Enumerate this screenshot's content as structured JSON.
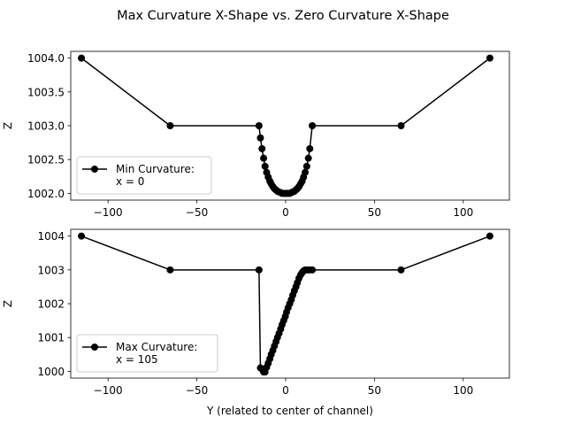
{
  "figure": {
    "title": "Max Curvature X-Shape vs. Zero Curvature X-Shape"
  },
  "chart_data": [
    {
      "type": "line",
      "panel": "top",
      "title": "",
      "xlabel": "",
      "ylabel": "Z",
      "xlim": [
        -121,
        126
      ],
      "ylim": [
        1001.9,
        1004.1
      ],
      "xticks": [
        -100,
        -50,
        0,
        50,
        100
      ],
      "xtick_labels": [
        "−100",
        "−50",
        "0",
        "50",
        "100"
      ],
      "yticks": [
        1002.0,
        1002.5,
        1003.0,
        1003.5,
        1004.0
      ],
      "ytick_labels": [
        "1002.0",
        "1002.5",
        "1003.0",
        "1003.5",
        "1004.0"
      ],
      "grid": false,
      "legend_position": "lower-left",
      "series": [
        {
          "name": "Min Curvature:\nx = 0",
          "color": "#000000",
          "marker": "circle",
          "x": [
            -115,
            -65,
            -15,
            -14.2,
            -13.3,
            -12.4,
            -11.6,
            -10.7,
            -9.8,
            -8.9,
            -8.1,
            -7.2,
            -6.3,
            -5.4,
            -4.6,
            -3.7,
            -2.8,
            -2,
            -1.1,
            -0.2,
            0.5,
            1.4,
            2.3,
            3.2,
            4,
            4.9,
            5.8,
            6.6,
            7.5,
            8.4,
            9.3,
            10.1,
            11,
            11.9,
            12.8,
            13.6,
            15,
            65,
            115
          ],
          "y": [
            1004.0,
            1003.0,
            1003.0,
            1002.82,
            1002.66,
            1002.52,
            1002.4,
            1002.31,
            1002.24,
            1002.18,
            1002.14,
            1002.1,
            1002.07,
            1002.05,
            1002.03,
            1002.02,
            1002.01,
            1002.0,
            1002.0,
            1002.0,
            1002.0,
            1002.0,
            1002.0,
            1002.01,
            1002.02,
            1002.03,
            1002.05,
            1002.07,
            1002.1,
            1002.14,
            1002.18,
            1002.24,
            1002.31,
            1002.4,
            1002.52,
            1002.66,
            1003.0,
            1003.0,
            1004.0
          ]
        }
      ]
    },
    {
      "type": "line",
      "panel": "bottom",
      "title": "",
      "xlabel": "Y (related to center of channel)",
      "ylabel": "Z",
      "xlim": [
        -121,
        126
      ],
      "ylim": [
        999.8,
        1004.2
      ],
      "xticks": [
        -100,
        -50,
        0,
        50,
        100
      ],
      "xtick_labels": [
        "−100",
        "−50",
        "0",
        "50",
        "100"
      ],
      "yticks": [
        1000,
        1001,
        1002,
        1003,
        1004
      ],
      "ytick_labels": [
        "1000",
        "1001",
        "1002",
        "1003",
        "1004"
      ],
      "grid": false,
      "legend_position": "lower-left",
      "series": [
        {
          "name": "Max Curvature:\nx = 105",
          "color": "#000000",
          "marker": "circle",
          "x": [
            -115,
            -65,
            -15,
            -14.2,
            -13.3,
            -12.4,
            -11.6,
            -10.7,
            -9.8,
            -8.9,
            -8.1,
            -7.2,
            -6.3,
            -5.4,
            -4.6,
            -3.7,
            -2.8,
            -2,
            -1.1,
            -0.2,
            0.5,
            1.4,
            2.3,
            3.2,
            4,
            4.9,
            5.8,
            6.6,
            7.5,
            8.4,
            9.3,
            10.1,
            11,
            11.9,
            12.8,
            13.6,
            15,
            65,
            115
          ],
          "y": [
            1004.0,
            1003.0,
            1003.0,
            1000.1,
            1000.07,
            999.98,
            999.98,
            1000.12,
            1000.24,
            1000.37,
            1000.5,
            1000.62,
            1000.75,
            1000.88,
            1001.0,
            1001.12,
            1001.25,
            1001.38,
            1001.5,
            1001.62,
            1001.75,
            1001.88,
            1002.0,
            1002.12,
            1002.25,
            1002.38,
            1002.5,
            1002.62,
            1002.75,
            1002.85,
            1002.92,
            1002.97,
            1003.0,
            1003.0,
            1003.0,
            1003.0,
            1003.0,
            1003.0,
            1004.0
          ]
        }
      ]
    }
  ]
}
